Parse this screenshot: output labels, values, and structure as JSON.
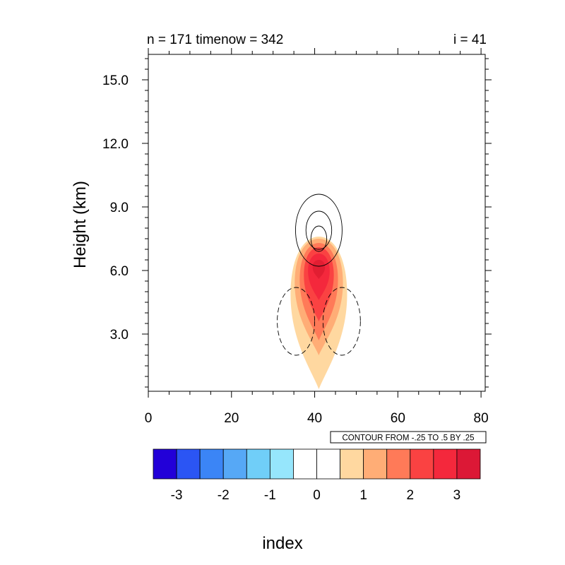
{
  "header": {
    "left_title": "n = 171 timenow = 342",
    "right_title": "i = 41"
  },
  "chart_data": {
    "type": "contour",
    "title_left": "n = 171 timenow = 342",
    "title_right": "i = 41",
    "xlabel": "index",
    "ylabel": "Height (km)",
    "xlim": [
      0,
      81
    ],
    "ylim": [
      0.3,
      16.2
    ],
    "x_ticks": [
      "0",
      "20",
      "40",
      "60",
      "80"
    ],
    "y_ticks": [
      "3.0",
      "6.0",
      "9.0",
      "12.0",
      "15.0"
    ],
    "contour_info": "CONTOUR FROM -.25 TO .5 BY .25",
    "filled_field": {
      "center_x": 41,
      "levels": [
        {
          "value": 0.5,
          "y_bottom": 0.4,
          "y_top": 7.6,
          "half_width": 6.8,
          "color": "#ffd8a0"
        },
        {
          "value": 1.0,
          "y_bottom": 2.0,
          "y_top": 7.5,
          "half_width": 5.8,
          "color": "#ffad76"
        },
        {
          "value": 1.5,
          "y_bottom": 2.7,
          "y_top": 7.3,
          "half_width": 4.6,
          "color": "#ff7a58"
        },
        {
          "value": 2.0,
          "y_bottom": 3.6,
          "y_top": 7.1,
          "half_width": 3.6,
          "color": "#fa4242"
        },
        {
          "value": 2.5,
          "y_bottom": 4.6,
          "y_top": 6.8,
          "half_width": 2.6,
          "color": "#f4283c"
        },
        {
          "value": 3.0,
          "y_bottom": 5.6,
          "y_top": 6.5,
          "half_width": 1.5,
          "color": "#e21e32"
        }
      ]
    },
    "contour_lines": [
      {
        "value": 0.25,
        "style": "solid",
        "cx": 41,
        "cy": 7.9,
        "rx": 5.6,
        "ry": 1.7
      },
      {
        "value": 0.5,
        "style": "solid",
        "cx": 41,
        "cy": 7.9,
        "rx": 3.1,
        "ry": 0.9
      },
      {
        "value": 0.25,
        "style": "solid",
        "cx": 41,
        "cy": 7.5,
        "rx": 1.9,
        "ry": 0.6
      },
      {
        "value": -0.25,
        "style": "dashed",
        "cx": 35.5,
        "cy": 3.6,
        "rx": 4.5,
        "ry": 1.6
      },
      {
        "value": -0.25,
        "style": "dashed",
        "cx": 46.5,
        "cy": 3.6,
        "rx": 4.5,
        "ry": 1.6
      }
    ],
    "colorbar": {
      "colors": [
        "#2200d8",
        "#2b55f4",
        "#3b85f6",
        "#56a8f6",
        "#70cef8",
        "#96e6fc",
        "#ffffff",
        "#ffffff",
        "#ffd8a0",
        "#ffad76",
        "#ff7a58",
        "#fa4242",
        "#f4283c",
        "#dc1836"
      ],
      "labels": [
        "-3",
        "-2",
        "-1",
        "0",
        "1",
        "2",
        "3"
      ]
    }
  }
}
